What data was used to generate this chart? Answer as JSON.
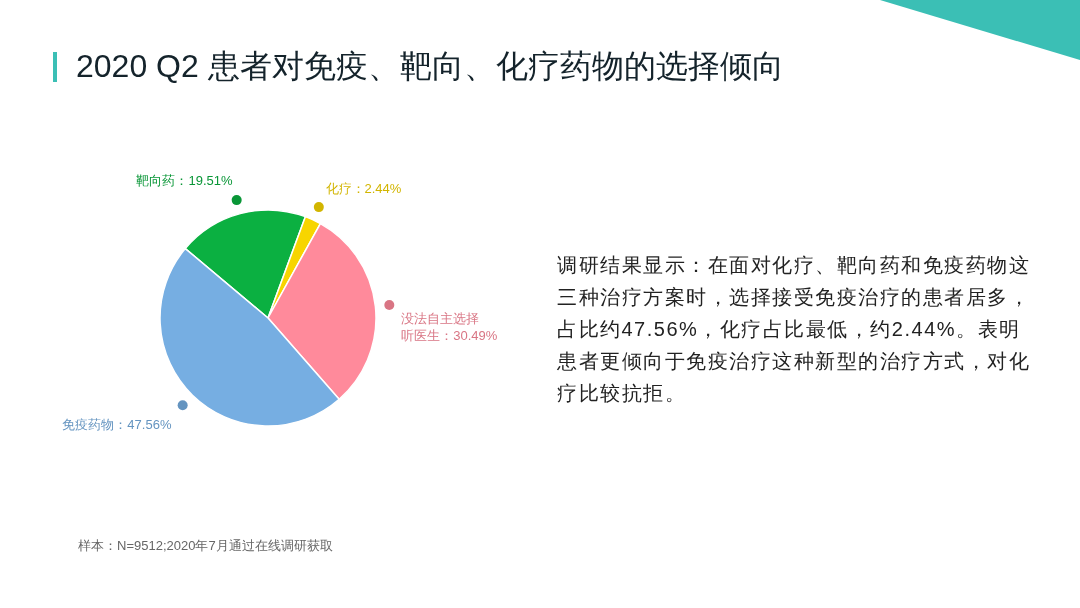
{
  "chart_data": {
    "type": "pie",
    "title": "2020 Q2 患者对免疫、靶向、化疗药物的选择倾向",
    "categories": [
      "靶向药",
      "化疗",
      "没法自主选择听医生",
      "免疫药物"
    ],
    "values": [
      19.51,
      2.44,
      30.49,
      47.56
    ],
    "colors": [
      "#0bb041",
      "#f7d500",
      "#ff8a9b",
      "#76aee2"
    ],
    "value_labels": [
      "19.51%",
      "2.44%",
      "30.49%",
      "47.56%"
    ],
    "annotations": [
      "调研结果显示：在面对化疗、靶向药和免疫药物这三种治疗方案时，选择接受免疫治疗的患者居多，占比约47.56%，化疗占比最低，约2.44%。表明患者更倾向于免疫治疗这种新型的治疗方式，对化疗比较抗拒。",
      "样本：N=9512;2020年7月通过在线调研获取"
    ]
  }
}
